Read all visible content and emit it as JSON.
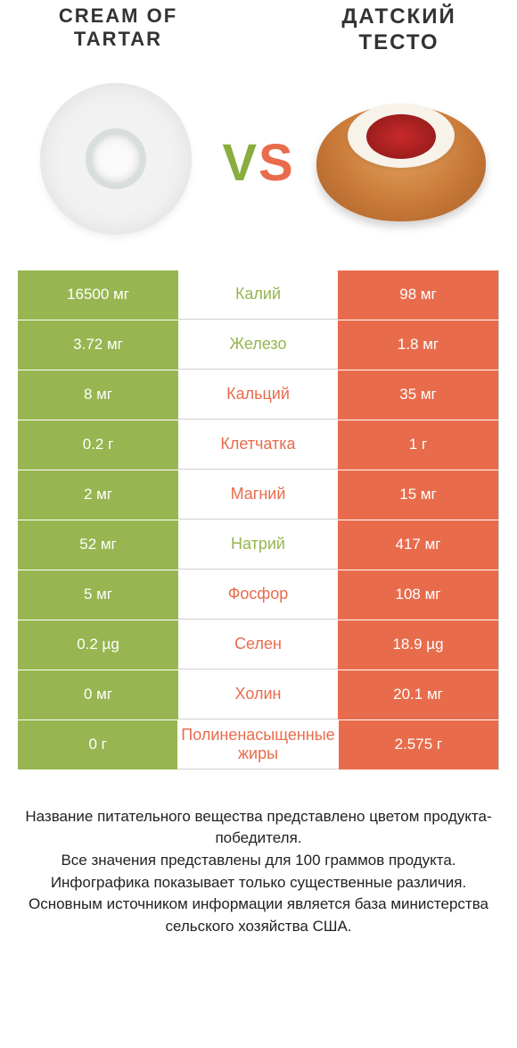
{
  "header": {
    "left_title_line1": "CREAM OF",
    "left_title_line2": "TARTAR",
    "right_title_line1": "ДАТСКИЙ",
    "right_title_line2": "ТЕСТО",
    "vs_v": "V",
    "vs_s": "S"
  },
  "colors": {
    "green": "#97b550",
    "orange": "#e86c4c",
    "mid_border": "#d0d0d0",
    "text_dark": "#333333"
  },
  "rows": [
    {
      "left": "16500 мг",
      "name": "Калий",
      "right": "98 мг",
      "winner": "left"
    },
    {
      "left": "3.72 мг",
      "name": "Железо",
      "right": "1.8 мг",
      "winner": "left"
    },
    {
      "left": "8 мг",
      "name": "Кальций",
      "right": "35 мг",
      "winner": "right"
    },
    {
      "left": "0.2 г",
      "name": "Клетчатка",
      "right": "1 г",
      "winner": "right"
    },
    {
      "left": "2 мг",
      "name": "Магний",
      "right": "15 мг",
      "winner": "right"
    },
    {
      "left": "52 мг",
      "name": "Натрий",
      "right": "417 мг",
      "winner": "left"
    },
    {
      "left": "5 мг",
      "name": "Фосфор",
      "right": "108 мг",
      "winner": "right"
    },
    {
      "left": "0.2 µg",
      "name": "Селен",
      "right": "18.9 µg",
      "winner": "right"
    },
    {
      "left": "0 мг",
      "name": "Холин",
      "right": "20.1 мг",
      "winner": "right"
    },
    {
      "left": "0 г",
      "name": "Полиненасыщенные жиры",
      "right": "2.575 г",
      "winner": "right"
    }
  ],
  "footer": {
    "l1": "Название питательного вещества представлено цветом продукта-победителя.",
    "l2": "Все значения представлены для 100 граммов продукта.",
    "l3": "Инфографика показывает только существенные различия.",
    "l4": "Основным источником информации является база министерства сельского хозяйства США."
  }
}
